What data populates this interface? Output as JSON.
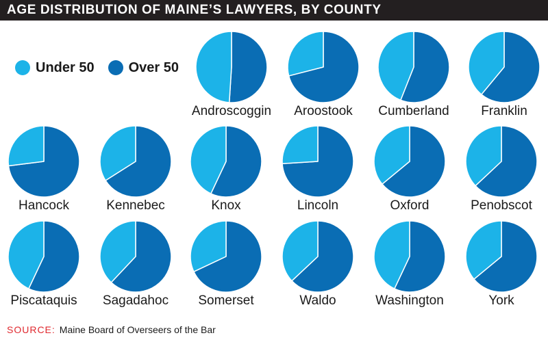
{
  "title": "AGE DISTRIBUTION OF MAINE’S LAWYERS, BY COUNTY",
  "legend": {
    "under": {
      "label": "Under 50",
      "color": "#1cb3e8"
    },
    "over": {
      "label": "Over 50",
      "color": "#0a6db4"
    }
  },
  "source": {
    "prefix": "SOURCE:",
    "text": "Maine Board of Overseers of the Bar"
  },
  "colors": {
    "under": "#1cb3e8",
    "over": "#0a6db4",
    "edge": "#ffffff"
  },
  "chart_data": {
    "type": "pie",
    "series_names": [
      "Under 50",
      "Over 50"
    ],
    "counties": [
      {
        "name": "Androscoggin",
        "under_pct": 49,
        "over_pct": 51
      },
      {
        "name": "Aroostook",
        "under_pct": 29,
        "over_pct": 71
      },
      {
        "name": "Cumberland",
        "under_pct": 44,
        "over_pct": 56
      },
      {
        "name": "Franklin",
        "under_pct": 39,
        "over_pct": 61
      },
      {
        "name": "Hancock",
        "under_pct": 27,
        "over_pct": 73
      },
      {
        "name": "Kennebec",
        "under_pct": 34,
        "over_pct": 66
      },
      {
        "name": "Knox",
        "under_pct": 43,
        "over_pct": 57
      },
      {
        "name": "Lincoln",
        "under_pct": 26,
        "over_pct": 74
      },
      {
        "name": "Oxford",
        "under_pct": 36,
        "over_pct": 64
      },
      {
        "name": "Penobscot",
        "under_pct": 37,
        "over_pct": 63
      },
      {
        "name": "Piscataquis",
        "under_pct": 43,
        "over_pct": 57
      },
      {
        "name": "Sagadahoc",
        "under_pct": 38,
        "over_pct": 62
      },
      {
        "name": "Somerset",
        "under_pct": 32,
        "over_pct": 68
      },
      {
        "name": "Waldo",
        "under_pct": 37,
        "over_pct": 63
      },
      {
        "name": "Washington",
        "under_pct": 43,
        "over_pct": 57
      },
      {
        "name": "York",
        "under_pct": 36,
        "over_pct": 64
      }
    ]
  }
}
